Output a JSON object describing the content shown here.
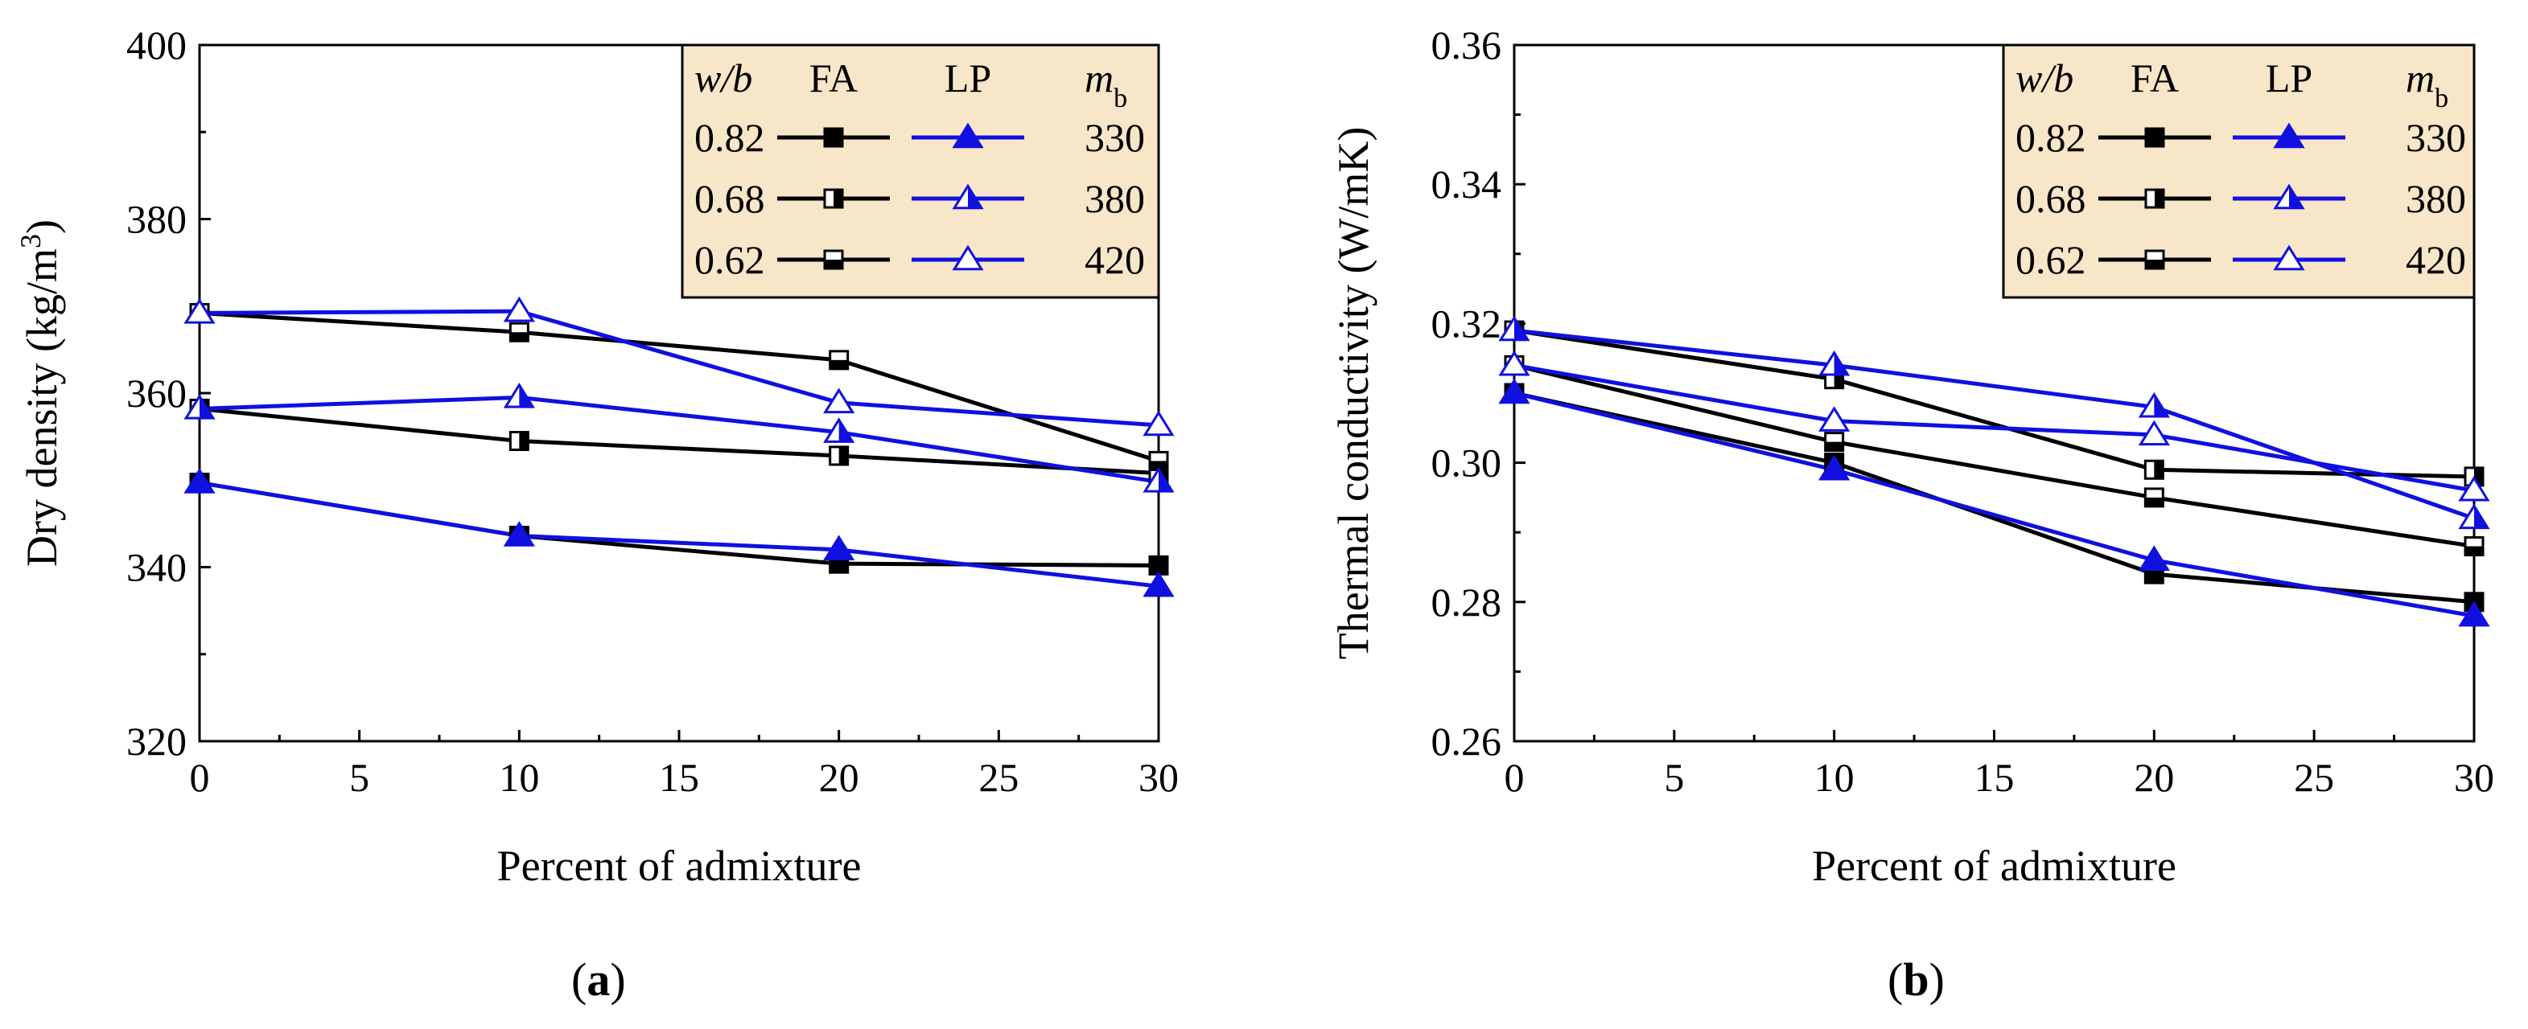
{
  "colors": {
    "fa": "#000000",
    "lp": "#1010e0",
    "legend_bg": "#f8e6c8"
  },
  "legend_header": {
    "wb": "w/b",
    "fa": "FA",
    "lp": "LP",
    "mb": "m",
    "mb_sub": "b"
  },
  "legend_rows": [
    {
      "wb": "0.82",
      "mb": "330",
      "fa_marker": "filled",
      "lp_marker": "filled"
    },
    {
      "wb": "0.68",
      "mb": "380",
      "fa_marker": "half",
      "lp_marker": "half"
    },
    {
      "wb": "0.62",
      "mb": "420",
      "fa_marker": "open",
      "lp_marker": "open"
    }
  ],
  "chart_data": [
    {
      "id": "a",
      "type": "line",
      "panel_label": "a",
      "xlabel": "Percent of admixture",
      "ylabel": "Dry density (kg/m",
      "ylabel_sup": "3",
      "ylabel_end": ")",
      "xlim": [
        0,
        30
      ],
      "ylim": [
        320,
        400
      ],
      "xticks": [
        "0",
        "5",
        "10",
        "15",
        "20",
        "25",
        "30"
      ],
      "yticks": [
        "320",
        "340",
        "360",
        "380",
        "400"
      ],
      "x": [
        0,
        10,
        20,
        30
      ],
      "series": [
        {
          "name": "FA w/b 0.82",
          "group": "fa",
          "marker": "square-filled",
          "values": [
            349.7,
            343.6,
            340.4,
            340.2
          ]
        },
        {
          "name": "FA w/b 0.68",
          "group": "fa",
          "marker": "square-half",
          "values": [
            358.2,
            354.5,
            352.8,
            350.8
          ]
        },
        {
          "name": "FA w/b 0.62",
          "group": "fa",
          "marker": "square-open",
          "values": [
            369.2,
            367.0,
            363.8,
            352.2
          ]
        },
        {
          "name": "LP w/b 0.82",
          "group": "lp",
          "marker": "triangle-filled",
          "values": [
            349.7,
            343.6,
            342.0,
            337.8
          ]
        },
        {
          "name": "LP w/b 0.68",
          "group": "lp",
          "marker": "triangle-half",
          "values": [
            358.2,
            359.5,
            355.5,
            349.8
          ]
        },
        {
          "name": "LP w/b 0.62",
          "group": "lp",
          "marker": "triangle-open",
          "values": [
            369.2,
            369.4,
            358.9,
            356.3
          ]
        }
      ]
    },
    {
      "id": "b",
      "type": "line",
      "panel_label": "b",
      "xlabel": "Percent of admixture",
      "ylabel": "Thermal conductivity (W/mK)",
      "ylabel_sup": "",
      "ylabel_end": "",
      "xlim": [
        0,
        30
      ],
      "ylim": [
        0.26,
        0.36
      ],
      "xticks": [
        "0",
        "5",
        "10",
        "15",
        "20",
        "25",
        "30"
      ],
      "yticks": [
        "0.26",
        "0.28",
        "0.30",
        "0.32",
        "0.34",
        "0.36"
      ],
      "x": [
        0,
        10,
        20,
        30
      ],
      "series": [
        {
          "name": "FA w/b 0.82",
          "group": "fa",
          "marker": "square-filled",
          "values": [
            0.31,
            0.3,
            0.284,
            0.28
          ]
        },
        {
          "name": "FA w/b 0.68",
          "group": "fa",
          "marker": "square-half",
          "values": [
            0.319,
            0.312,
            0.299,
            0.298
          ]
        },
        {
          "name": "FA w/b 0.62",
          "group": "fa",
          "marker": "square-open",
          "values": [
            0.314,
            0.303,
            0.295,
            0.288
          ]
        },
        {
          "name": "LP w/b 0.82",
          "group": "lp",
          "marker": "triangle-filled",
          "values": [
            0.31,
            0.299,
            0.286,
            0.278
          ]
        },
        {
          "name": "LP w/b 0.68",
          "group": "lp",
          "marker": "triangle-half",
          "values": [
            0.319,
            0.314,
            0.308,
            0.292
          ]
        },
        {
          "name": "LP w/b 0.62",
          "group": "lp",
          "marker": "triangle-open",
          "values": [
            0.314,
            0.306,
            0.304,
            0.296
          ]
        }
      ]
    }
  ]
}
